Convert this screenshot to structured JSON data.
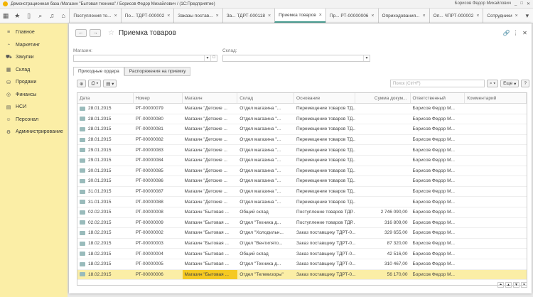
{
  "window": {
    "title": "Демонстрационная база /Магазин \"Бытовая техника\" / Борисов Федор Михайлович / (1С:Предприятие)",
    "user": "Борисов Федор Михайлович"
  },
  "tabs": [
    {
      "label": "Поступления то..."
    },
    {
      "label": "По... ТДРТ-000002"
    },
    {
      "label": "Заказы постав..."
    },
    {
      "label": "За... ТДРТ-000118"
    },
    {
      "label": "Приемка товаров",
      "active": true
    },
    {
      "label": "Пр... РТ-00000006"
    },
    {
      "label": "Оприходования..."
    },
    {
      "label": "Оп... ЧПРТ-000002"
    },
    {
      "label": "Сотрудники"
    }
  ],
  "sidebar": {
    "items": [
      {
        "label": "Главное",
        "icon": "menu-icon"
      },
      {
        "label": "Маркетинг",
        "icon": "marketing-icon"
      },
      {
        "label": "Закупки",
        "icon": "cart-icon"
      },
      {
        "label": "Склад",
        "icon": "warehouse-icon"
      },
      {
        "label": "Продажи",
        "icon": "sales-icon"
      },
      {
        "label": "Финансы",
        "icon": "finance-icon"
      },
      {
        "label": "НСИ",
        "icon": "reference-icon"
      },
      {
        "label": "Персонал",
        "icon": "person-icon"
      },
      {
        "label": "Администрирование",
        "icon": "gear-icon"
      }
    ]
  },
  "page": {
    "title": "Приемка товаров",
    "store_label": "Магазин:",
    "store_value": "",
    "warehouse_label": "Склад:",
    "warehouse_value": ""
  },
  "form_tabs": [
    {
      "label": "Приходные ордера",
      "active": true
    },
    {
      "label": "Распоряжения на приемку"
    }
  ],
  "toolbar": {
    "search_placeholder": "Поиск (Ctrl+F)",
    "more_label": "Еще",
    "help_label": "?"
  },
  "table": {
    "columns": [
      "Дата",
      "Номер",
      "Магазин",
      "Склад",
      "Основание",
      "Сумма докум...",
      "Ответственный",
      "Комментарий"
    ],
    "rows": [
      [
        "28.01.2015",
        "РТ-00000079",
        "Магазин \"Детские ...",
        "Отдел магазина \"...",
        "Перемещение товаров ТД...",
        "",
        "Борисов Федор М...",
        ""
      ],
      [
        "28.01.2015",
        "РТ-00000080",
        "Магазин \"Детские ...",
        "Отдел магазина \"...",
        "Перемещение товаров ТД...",
        "",
        "Борисов Федор М...",
        ""
      ],
      [
        "28.01.2015",
        "РТ-00000081",
        "Магазин \"Детские ...",
        "Отдел магазина \"...",
        "Перемещение товаров ТД...",
        "",
        "Борисов Федор М...",
        ""
      ],
      [
        "28.01.2015",
        "РТ-00000082",
        "Магазин \"Детские ...",
        "Отдел магазина \"...",
        "Перемещение товаров ТД...",
        "",
        "Борисов Федор М...",
        ""
      ],
      [
        "29.01.2015",
        "РТ-00000083",
        "Магазин \"Детские ...",
        "Отдел магазина \"...",
        "Перемещение товаров ТД...",
        "",
        "Борисов Федор М...",
        ""
      ],
      [
        "29.01.2015",
        "РТ-00000084",
        "Магазин \"Детские ...",
        "Отдел магазина \"...",
        "Перемещение товаров ТД...",
        "",
        "Борисов Федор М...",
        ""
      ],
      [
        "30.01.2015",
        "РТ-00000085",
        "Магазин \"Детские ...",
        "Отдел магазина \"...",
        "Перемещение товаров ТД...",
        "",
        "Борисов Федор М...",
        ""
      ],
      [
        "30.01.2015",
        "РТ-00000086",
        "Магазин \"Детские ...",
        "Отдел магазина \"...",
        "Перемещение товаров ТД...",
        "",
        "Борисов Федор М...",
        ""
      ],
      [
        "31.01.2015",
        "РТ-00000087",
        "Магазин \"Детские ...",
        "Отдел магазина \"...",
        "Перемещение товаров ТД...",
        "",
        "Борисов Федор М...",
        ""
      ],
      [
        "31.01.2015",
        "РТ-00000088",
        "Магазин \"Детские ...",
        "Отдел магазина \"...",
        "Перемещение товаров ТД...",
        "",
        "Борисов Федор М...",
        ""
      ],
      [
        "02.02.2015",
        "РТ-00000008",
        "Магазин \"Бытовая ...",
        "Общий склад",
        "Поступление товаров ТДР...",
        "2 746 090,00",
        "Борисов Федор М...",
        ""
      ],
      [
        "02.02.2015",
        "РТ-00000009",
        "Магазин \"Бытовая ...",
        "Отдел \"Техника д...",
        "Поступление товаров ТДР...",
        "316 809,00",
        "Борисов Федор М...",
        ""
      ],
      [
        "18.02.2015",
        "РТ-00000002",
        "Магазин \"Бытовая ...",
        "Отдел \"Холодильн...",
        "Заказ поставщику ТДРТ-0...",
        "329 655,00",
        "Борисов Федор М...",
        ""
      ],
      [
        "18.02.2015",
        "РТ-00000003",
        "Магазин \"Бытовая ...",
        "Отдел \"Вентилято...",
        "Заказ поставщику ТДРТ-0...",
        "87 320,00",
        "Борисов Федор М...",
        ""
      ],
      [
        "18.02.2015",
        "РТ-00000004",
        "Магазин \"Бытовая ...",
        "Общий склад",
        "Заказ поставщику ТДРТ-0...",
        "42 516,00",
        "Борисов Федор М...",
        ""
      ],
      [
        "18.02.2015",
        "РТ-00000005",
        "Магазин \"Бытовая ...",
        "Отдел \"Техника д...",
        "Заказ поставщику ТДРТ-0...",
        "310 467,00",
        "Борисов Федор М...",
        ""
      ],
      [
        "18.02.2015",
        "РТ-00000006",
        "Магазин \"Бытовая ...",
        "Отдел \"Телевизоры\"",
        "Заказ поставщику ТДРТ-0...",
        "56 170,00",
        "Борисов Федор М...",
        ""
      ]
    ],
    "selected_row": 16
  },
  "colors": {
    "sidebar": "#fbeea6",
    "selection": "#fbeea6",
    "selected_cell": "#f5c922",
    "active_tab_underline": "#3f9b8f"
  }
}
